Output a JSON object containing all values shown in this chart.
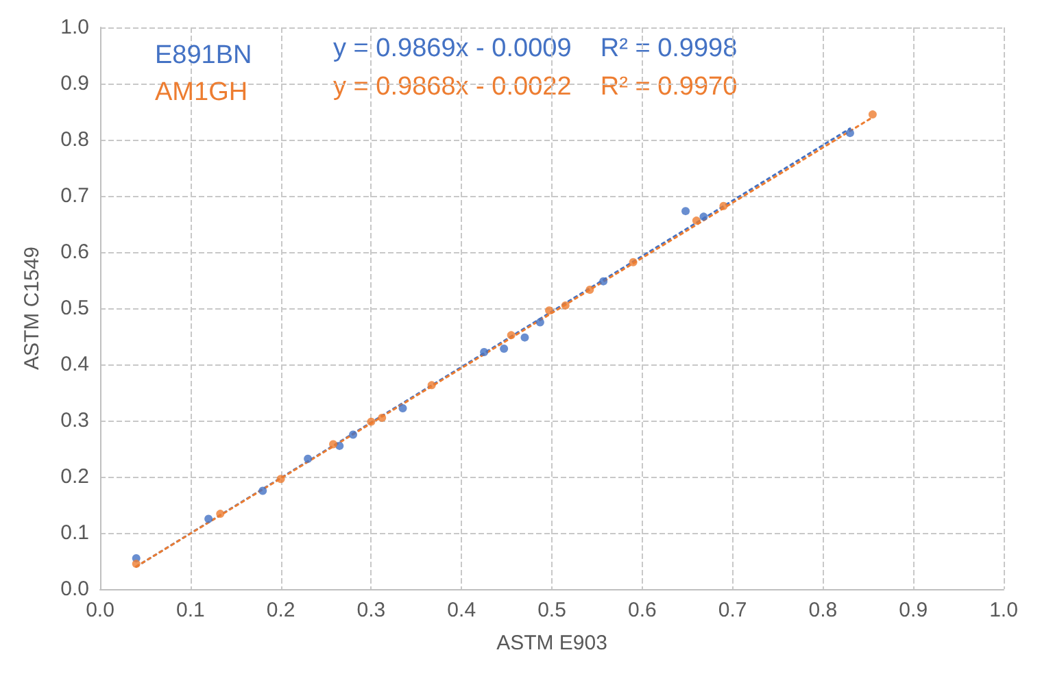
{
  "chart_data": {
    "type": "scatter",
    "xlabel": "ASTM E903",
    "ylabel": "ASTM C1549",
    "xlim": [
      0,
      1
    ],
    "ylim": [
      0,
      1
    ],
    "xticks": [
      {
        "value": 0,
        "label": "0.0"
      },
      0.1,
      0.2,
      0.3,
      0.4,
      0.5,
      0.6,
      0.7,
      0.8,
      0.9,
      {
        "value": 1,
        "label": "1.0"
      }
    ],
    "yticks": [
      {
        "value": 0,
        "label": "0.0"
      },
      0.1,
      0.2,
      0.3,
      0.4,
      0.5,
      0.6,
      0.7,
      0.8,
      0.9,
      {
        "value": 1,
        "label": "1.0"
      }
    ],
    "grid": true,
    "legend": "top left",
    "marker": "circle",
    "annotations": [
      "y = 0.9869x - 0.0009    R² = 0.9998",
      "y = 0.9868x - 0.0022    R² = 0.9970"
    ],
    "series": [
      {
        "name": "E891BN",
        "color": "#4472c4",
        "x": [
          0.04,
          0.12,
          0.18,
          0.23,
          0.265,
          0.28,
          0.335,
          0.425,
          0.447,
          0.47,
          0.487,
          0.557,
          0.648,
          0.668,
          0.83
        ],
        "values": [
          0.055,
          0.125,
          0.175,
          0.232,
          0.255,
          0.275,
          0.322,
          0.422,
          0.428,
          0.448,
          0.475,
          0.548,
          0.673,
          0.663,
          0.812
        ]
      },
      {
        "name": "AM1GH",
        "color": "#ed7d31",
        "x": [
          0.04,
          0.133,
          0.2,
          0.258,
          0.3,
          0.312,
          0.367,
          0.455,
          0.497,
          0.515,
          0.542,
          0.59,
          0.66,
          0.69,
          0.855
        ],
        "values": [
          0.045,
          0.134,
          0.196,
          0.258,
          0.298,
          0.305,
          0.363,
          0.452,
          0.496,
          0.505,
          0.533,
          0.582,
          0.656,
          0.682,
          0.845
        ]
      },
      {
        "type": "line",
        "color": "#4472c4",
        "line_style": "dotted",
        "marker": "none",
        "x": [
          0.04,
          0.83
        ],
        "values": [
          0.04,
          0.82
        ]
      },
      {
        "type": "line",
        "color": "#ed7d31",
        "line_style": "dotted",
        "marker": "none",
        "x": [
          0.04,
          0.855
        ],
        "values": [
          0.04,
          0.84
        ]
      }
    ]
  }
}
